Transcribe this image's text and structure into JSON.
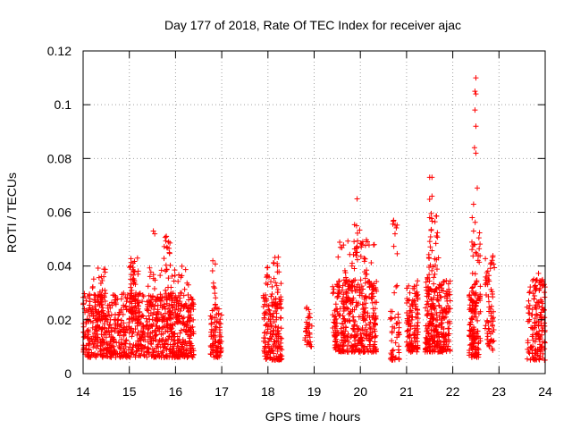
{
  "chart_data": {
    "type": "scatter",
    "title": "Day 177 of 2018, Rate Of TEC Index for receiver ajac",
    "xlabel": "GPS time / hours",
    "ylabel": "ROTI / TECUs",
    "xlim": [
      14,
      24
    ],
    "ylim": [
      0,
      0.12
    ],
    "x_ticks": [
      14,
      15,
      16,
      17,
      18,
      19,
      20,
      21,
      22,
      23,
      24
    ],
    "y_ticks": [
      0,
      0.02,
      0.04,
      0.06,
      0.08,
      0.1,
      0.12
    ],
    "x_tick_labels": [
      "14",
      "15",
      "16",
      "17",
      "18",
      "19",
      "20",
      "21",
      "22",
      "23",
      "24"
    ],
    "y_tick_labels": [
      "0",
      "0.02",
      "0.04",
      "0.06",
      "0.08",
      "0.1",
      "0.12"
    ],
    "grid": true,
    "marker": "+",
    "color": "#ff0000",
    "clusters": [
      {
        "x_range": [
          14.0,
          16.4
        ],
        "y_range": [
          0.006,
          0.03
        ],
        "n": 900
      },
      {
        "x_range": [
          14.2,
          14.5
        ],
        "y_range": [
          0.02,
          0.04
        ],
        "n": 40
      },
      {
        "x_range": [
          15.0,
          15.2
        ],
        "y_range": [
          0.02,
          0.043
        ],
        "n": 60
      },
      {
        "x_range": [
          15.4,
          16.3
        ],
        "y_range": [
          0.02,
          0.04
        ],
        "n": 70
      },
      {
        "x_range": [
          15.75,
          15.9
        ],
        "y_range": [
          0.038,
          0.052
        ],
        "n": 15
      },
      {
        "x_range": [
          16.75,
          17.0
        ],
        "y_range": [
          0.006,
          0.025
        ],
        "n": 90
      },
      {
        "x_range": [
          16.8,
          16.9
        ],
        "y_range": [
          0.025,
          0.042
        ],
        "n": 10
      },
      {
        "x_range": [
          17.9,
          18.3
        ],
        "y_range": [
          0.005,
          0.03
        ],
        "n": 170
      },
      {
        "x_range": [
          17.95,
          18.3
        ],
        "y_range": [
          0.03,
          0.044
        ],
        "n": 25
      },
      {
        "x_range": [
          18.8,
          18.95
        ],
        "y_range": [
          0.01,
          0.025
        ],
        "n": 35
      },
      {
        "x_range": [
          19.4,
          20.35
        ],
        "y_range": [
          0.008,
          0.035
        ],
        "n": 380
      },
      {
        "x_range": [
          19.5,
          20.3
        ],
        "y_range": [
          0.03,
          0.05
        ],
        "n": 60
      },
      {
        "x_range": [
          19.85,
          20.0
        ],
        "y_range": [
          0.045,
          0.056
        ],
        "n": 10
      },
      {
        "x_range": [
          20.65,
          20.85
        ],
        "y_range": [
          0.005,
          0.025
        ],
        "n": 45
      },
      {
        "x_range": [
          20.7,
          20.8
        ],
        "y_range": [
          0.03,
          0.057
        ],
        "n": 10
      },
      {
        "x_range": [
          21.0,
          21.25
        ],
        "y_range": [
          0.008,
          0.035
        ],
        "n": 120
      },
      {
        "x_range": [
          21.4,
          21.95
        ],
        "y_range": [
          0.008,
          0.035
        ],
        "n": 280
      },
      {
        "x_range": [
          21.45,
          21.7
        ],
        "y_range": [
          0.035,
          0.065
        ],
        "n": 35
      },
      {
        "x_range": [
          22.35,
          22.6
        ],
        "y_range": [
          0.006,
          0.03
        ],
        "n": 130
      },
      {
        "x_range": [
          22.4,
          22.6
        ],
        "y_range": [
          0.03,
          0.06
        ],
        "n": 30
      },
      {
        "x_range": [
          22.7,
          22.9
        ],
        "y_range": [
          0.008,
          0.045
        ],
        "n": 70
      },
      {
        "x_range": [
          23.6,
          24.0
        ],
        "y_range": [
          0.005,
          0.035
        ],
        "n": 150
      },
      {
        "x_range": [
          23.75,
          23.9
        ],
        "y_range": [
          0.03,
          0.039
        ],
        "n": 12
      }
    ],
    "outliers": [
      {
        "x": 15.52,
        "y": 0.053
      },
      {
        "x": 15.55,
        "y": 0.052
      },
      {
        "x": 15.8,
        "y": 0.051
      },
      {
        "x": 15.85,
        "y": 0.049
      },
      {
        "x": 19.93,
        "y": 0.065
      },
      {
        "x": 20.3,
        "y": 0.048
      },
      {
        "x": 20.72,
        "y": 0.057
      },
      {
        "x": 20.75,
        "y": 0.052
      },
      {
        "x": 21.5,
        "y": 0.073
      },
      {
        "x": 21.55,
        "y": 0.073
      },
      {
        "x": 21.55,
        "y": 0.066
      },
      {
        "x": 21.5,
        "y": 0.058
      },
      {
        "x": 22.5,
        "y": 0.11
      },
      {
        "x": 22.48,
        "y": 0.105
      },
      {
        "x": 22.5,
        "y": 0.104
      },
      {
        "x": 22.48,
        "y": 0.098
      },
      {
        "x": 22.5,
        "y": 0.092
      },
      {
        "x": 22.47,
        "y": 0.084
      },
      {
        "x": 22.5,
        "y": 0.082
      },
      {
        "x": 22.53,
        "y": 0.069
      },
      {
        "x": 22.45,
        "y": 0.063
      },
      {
        "x": 22.42,
        "y": 0.058
      },
      {
        "x": 22.45,
        "y": 0.053
      }
    ]
  }
}
